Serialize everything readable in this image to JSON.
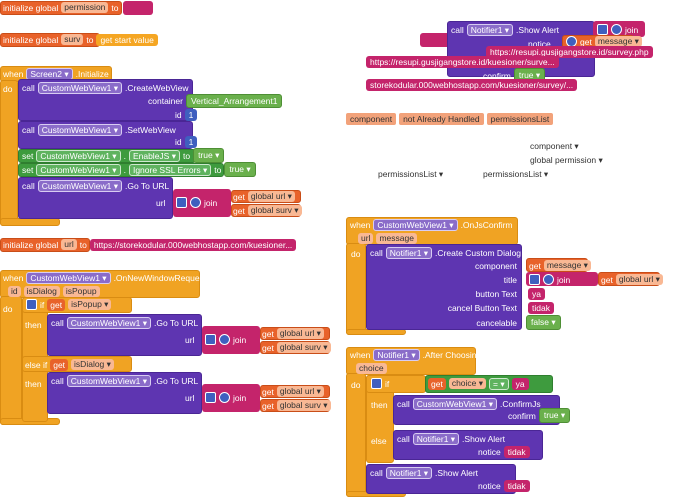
{
  "keywords": {
    "initialize_global": "initialize global",
    "to": "to",
    "when": "when",
    "do": "do",
    "call": "call",
    "set": "set",
    "get": "get",
    "if": "if",
    "then": "then",
    "else_if": "else if",
    "else": "else",
    "join": "join",
    "dot": "."
  },
  "globals": [
    {
      "name": "permission"
    },
    {
      "name": "surv",
      "value": "get start value"
    },
    {
      "name": "url",
      "value": "https://storekodular.000webhostapp.com/kuesioner..."
    }
  ],
  "screen_init": {
    "component": "Screen2 ▾",
    "event": ".Initialize",
    "create": {
      "component": "CustomWebView1 ▾",
      "method": ".CreateWebView",
      "container_label": "container",
      "container": "Vertical_Arrangement1",
      "id_label": "id",
      "id": "1"
    },
    "set_web": {
      "component": "CustomWebView1 ▾",
      "method": ".SetWebView",
      "id_label": "id",
      "id": "1"
    },
    "enable_js": {
      "component": "CustomWebView1 ▾",
      "property": "EnableJS ▾",
      "value": "true ▾"
    },
    "ignore_ssl": {
      "component": "CustomWebView1 ▾",
      "property": "Ignore SSL Errors ▾",
      "value": "true ▾"
    },
    "go": {
      "component": "CustomWebView1 ▾",
      "method": ".Go To URL",
      "url_label": "url",
      "vars": [
        "global url ▾",
        "global surv ▾"
      ]
    }
  },
  "new_window": {
    "component": "CustomWebView1 ▾",
    "event": ".OnNewWindowRequest",
    "params": [
      "id",
      "isDialog",
      "isPopup"
    ],
    "cond1": "isPopup ▾",
    "go1": {
      "component": "CustomWebView1 ▾",
      "method": ".Go To URL",
      "url_label": "url",
      "vars": [
        "global url ▾",
        "global surv ▾"
      ]
    },
    "cond2": "isDialog ▾",
    "go2": {
      "component": "CustomWebView1 ▾",
      "method": ".Go To URL",
      "url_label": "url",
      "vars": [
        "global url ▾",
        "global surv ▾"
      ]
    }
  },
  "notifier_top": {
    "component": "Notifier1 ▾",
    "method": ".Show Alert",
    "notice_label": "notice",
    "partial": "h",
    "var": "message ▾",
    "url1": "https://resupi.gusjigangstore.id/survey.php",
    "url2": "https://resupi.gusjigangstore.id/kuesioner/surve...",
    "confirm_label": "confirm",
    "confirm": "true ▾",
    "url3": "storekodular.000webhostapp.com/kuesioner/survey/..."
  },
  "loose": [
    "component",
    "not Already Handled",
    "permissionsList"
  ],
  "floating": [
    "component ▾",
    "global permission ▾",
    "permissionsList ▾",
    "permissionsList ▾"
  ],
  "js_confirm": {
    "component": "CustomWebView1 ▾",
    "event": ".OnJsConfirm",
    "params": [
      "url",
      "message"
    ],
    "dialog": {
      "component": "Notifier1 ▾",
      "method": ".Create Custom Dialog",
      "labels": [
        "component",
        "title",
        "button Text",
        "cancel Button Text",
        "cancelable"
      ],
      "component_var": "message ▾",
      "title_var": "global url ▾",
      "button": "ya",
      "cancel": "tidak",
      "cancelable": "false ▾"
    }
  },
  "after_choosing": {
    "component": "Notifier1 ▾",
    "event": ".After Choosing",
    "param": "choice",
    "cond_var": "choice ▾",
    "op": "= ▾",
    "cond_value": "ya",
    "confirm": {
      "component": "CustomWebView1 ▾",
      "method": ".ConfirmJs",
      "label": "confirm",
      "value": "true ▾"
    },
    "alert1": {
      "component": "Notifier1 ▾",
      "method": ".Show Alert",
      "label": "notice",
      "value": "tidak"
    },
    "alert2": {
      "component": "Notifier1 ▾",
      "method": ".Show Alert",
      "label": "notice",
      "value": "tidak"
    }
  }
}
